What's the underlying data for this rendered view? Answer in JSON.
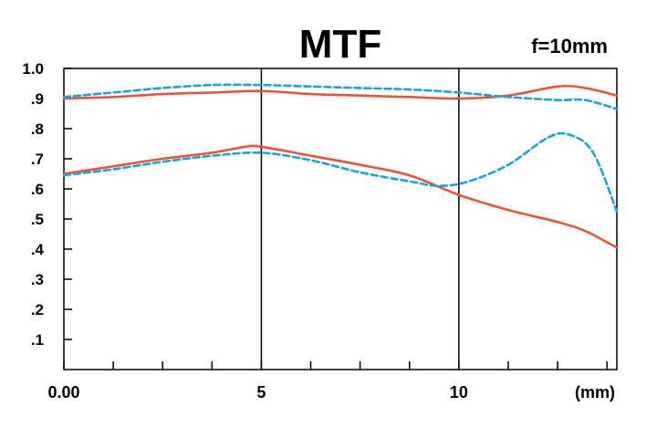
{
  "chart_data": {
    "type": "line",
    "title": "MTF",
    "subtitle": "f=10mm",
    "xlabel": "",
    "ylabel": "",
    "x_unit_label": "(mm)",
    "xlim": [
      0,
      14
    ],
    "ylim": [
      0,
      1.0
    ],
    "x_ticks": [
      0,
      1.25,
      2.5,
      3.75,
      5,
      6.25,
      7.5,
      8.75,
      10,
      11.25,
      12.5,
      13.75
    ],
    "x_tick_labels": [
      {
        "x": 0,
        "text": "0.00"
      },
      {
        "x": 5,
        "text": "5"
      },
      {
        "x": 10,
        "text": "10"
      }
    ],
    "y_ticks": [
      0.1,
      0.2,
      0.3,
      0.4,
      0.5,
      0.6,
      0.7,
      0.8,
      0.9,
      1.0
    ],
    "y_tick_labels": [
      ".1",
      ".2",
      ".3",
      ".4",
      ".5",
      ".6",
      ".7",
      ".8",
      ".9",
      "1.0"
    ],
    "vertical_lines": [
      5,
      10
    ],
    "grid": false,
    "legend": "none",
    "series": [
      {
        "color": "#e8553a",
        "dash": "solid",
        "points": [
          [
            0,
            0.9
          ],
          [
            1.25,
            0.905
          ],
          [
            2.5,
            0.915
          ],
          [
            3.75,
            0.92
          ],
          [
            5,
            0.925
          ],
          [
            6.25,
            0.915
          ],
          [
            7.5,
            0.91
          ],
          [
            8.75,
            0.905
          ],
          [
            10,
            0.9
          ],
          [
            11.25,
            0.91
          ],
          [
            12.5,
            0.94
          ],
          [
            13.2,
            0.935
          ],
          [
            14,
            0.91
          ]
        ]
      },
      {
        "color": "#1aa3dd",
        "dash": "dashed",
        "points": [
          [
            0,
            0.905
          ],
          [
            1.25,
            0.92
          ],
          [
            2.5,
            0.935
          ],
          [
            3.75,
            0.945
          ],
          [
            5,
            0.945
          ],
          [
            6.25,
            0.94
          ],
          [
            7.5,
            0.935
          ],
          [
            8.75,
            0.93
          ],
          [
            10,
            0.92
          ],
          [
            11.25,
            0.905
          ],
          [
            12.5,
            0.895
          ],
          [
            13.2,
            0.895
          ],
          [
            14,
            0.865
          ]
        ]
      },
      {
        "color": "#e8553a",
        "dash": "solid",
        "points": [
          [
            0,
            0.65
          ],
          [
            1.25,
            0.675
          ],
          [
            2.5,
            0.7
          ],
          [
            3.75,
            0.72
          ],
          [
            4.6,
            0.74
          ],
          [
            5,
            0.74
          ],
          [
            6.25,
            0.71
          ],
          [
            7.5,
            0.68
          ],
          [
            8.75,
            0.645
          ],
          [
            10,
            0.58
          ],
          [
            11.25,
            0.53
          ],
          [
            12.5,
            0.49
          ],
          [
            13.2,
            0.46
          ],
          [
            14,
            0.405
          ]
        ]
      },
      {
        "color": "#1aa3dd",
        "dash": "dashed",
        "points": [
          [
            0,
            0.645
          ],
          [
            1.25,
            0.665
          ],
          [
            2.5,
            0.69
          ],
          [
            3.75,
            0.71
          ],
          [
            5,
            0.72
          ],
          [
            6.25,
            0.695
          ],
          [
            7.5,
            0.655
          ],
          [
            8.75,
            0.625
          ],
          [
            9.5,
            0.61
          ],
          [
            10.25,
            0.625
          ],
          [
            11.25,
            0.68
          ],
          [
            12.25,
            0.77
          ],
          [
            12.8,
            0.78
          ],
          [
            13.4,
            0.72
          ],
          [
            14,
            0.525
          ]
        ]
      }
    ]
  }
}
